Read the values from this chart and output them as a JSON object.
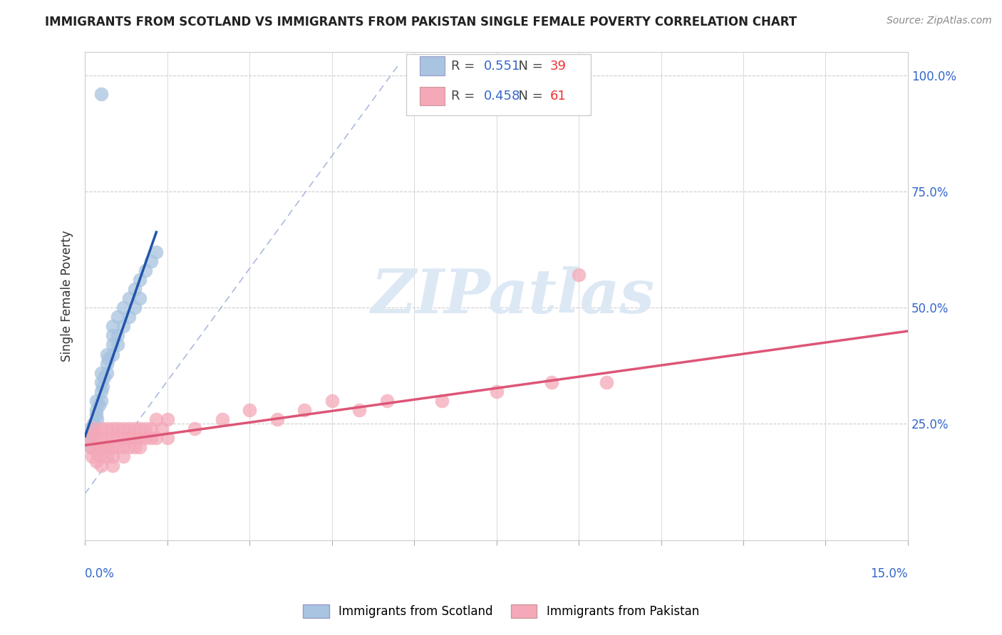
{
  "title": "IMMIGRANTS FROM SCOTLAND VS IMMIGRANTS FROM PAKISTAN SINGLE FEMALE POVERTY CORRELATION CHART",
  "source": "Source: ZipAtlas.com",
  "ylabel": "Single Female Poverty",
  "scotland_R": 0.551,
  "scotland_N": 39,
  "pakistan_R": 0.458,
  "pakistan_N": 61,
  "scotland_color": "#a8c4e0",
  "pakistan_color": "#f4a8b8",
  "scotland_line_color": "#2255aa",
  "pakistan_line_color": "#dd5577",
  "ref_line_color": "#aabbdd",
  "background_color": "#ffffff",
  "watermark_text": "ZIPatlas",
  "watermark_color": "#dde8f5",
  "scotland_legend_label": "Immigrants from Scotland",
  "pakistan_legend_label": "Immigrants from Pakistan",
  "scotland_x": [
    0.0008,
    0.001,
    0.001,
    0.0012,
    0.0015,
    0.002,
    0.002,
    0.002,
    0.0022,
    0.0025,
    0.003,
    0.003,
    0.003,
    0.003,
    0.0032,
    0.0035,
    0.004,
    0.004,
    0.004,
    0.0042,
    0.005,
    0.005,
    0.005,
    0.005,
    0.006,
    0.006,
    0.006,
    0.007,
    0.007,
    0.008,
    0.008,
    0.009,
    0.009,
    0.01,
    0.01,
    0.011,
    0.012,
    0.013,
    0.003
  ],
  "scotland_y": [
    0.22,
    0.2,
    0.24,
    0.23,
    0.25,
    0.27,
    0.28,
    0.3,
    0.26,
    0.29,
    0.32,
    0.34,
    0.36,
    0.3,
    0.33,
    0.35,
    0.38,
    0.4,
    0.36,
    0.39,
    0.42,
    0.44,
    0.4,
    0.46,
    0.44,
    0.48,
    0.42,
    0.5,
    0.46,
    0.52,
    0.48,
    0.54,
    0.5,
    0.56,
    0.52,
    0.58,
    0.6,
    0.62,
    0.96
  ],
  "pakistan_x": [
    0.001,
    0.001,
    0.0012,
    0.0015,
    0.002,
    0.002,
    0.002,
    0.002,
    0.003,
    0.003,
    0.003,
    0.003,
    0.003,
    0.004,
    0.004,
    0.004,
    0.004,
    0.004,
    0.005,
    0.005,
    0.005,
    0.005,
    0.005,
    0.006,
    0.006,
    0.006,
    0.007,
    0.007,
    0.007,
    0.007,
    0.008,
    0.008,
    0.008,
    0.009,
    0.009,
    0.009,
    0.01,
    0.01,
    0.01,
    0.011,
    0.011,
    0.012,
    0.012,
    0.013,
    0.013,
    0.014,
    0.015,
    0.015,
    0.02,
    0.025,
    0.03,
    0.035,
    0.04,
    0.045,
    0.05,
    0.055,
    0.065,
    0.075,
    0.085,
    0.095,
    0.09
  ],
  "pakistan_y": [
    0.2,
    0.22,
    0.18,
    0.24,
    0.19,
    0.21,
    0.23,
    0.17,
    0.2,
    0.22,
    0.18,
    0.24,
    0.16,
    0.2,
    0.22,
    0.18,
    0.24,
    0.2,
    0.2,
    0.22,
    0.18,
    0.24,
    0.16,
    0.2,
    0.22,
    0.24,
    0.2,
    0.22,
    0.18,
    0.24,
    0.2,
    0.22,
    0.24,
    0.2,
    0.22,
    0.24,
    0.22,
    0.24,
    0.2,
    0.22,
    0.24,
    0.22,
    0.24,
    0.22,
    0.26,
    0.24,
    0.22,
    0.26,
    0.24,
    0.26,
    0.28,
    0.26,
    0.28,
    0.3,
    0.28,
    0.3,
    0.3,
    0.32,
    0.34,
    0.34,
    0.57
  ],
  "xlim": [
    0,
    0.15
  ],
  "ylim": [
    0,
    1.05
  ],
  "x_ticks": [
    0.0,
    0.015,
    0.03,
    0.045,
    0.06,
    0.075,
    0.09,
    0.105,
    0.12,
    0.135,
    0.15
  ],
  "y_ticks": [
    0.0,
    0.25,
    0.5,
    0.75,
    1.0
  ],
  "y_tick_labels_right": [
    "",
    "25.0%",
    "50.0%",
    "75.0%",
    "100.0%"
  ],
  "scotland_trend_x": [
    0.0,
    0.013
  ],
  "pakistan_trend_x": [
    0.0,
    0.15
  ],
  "title_fontsize": 12,
  "source_fontsize": 10,
  "tick_label_fontsize": 12,
  "legend_fontsize": 13
}
